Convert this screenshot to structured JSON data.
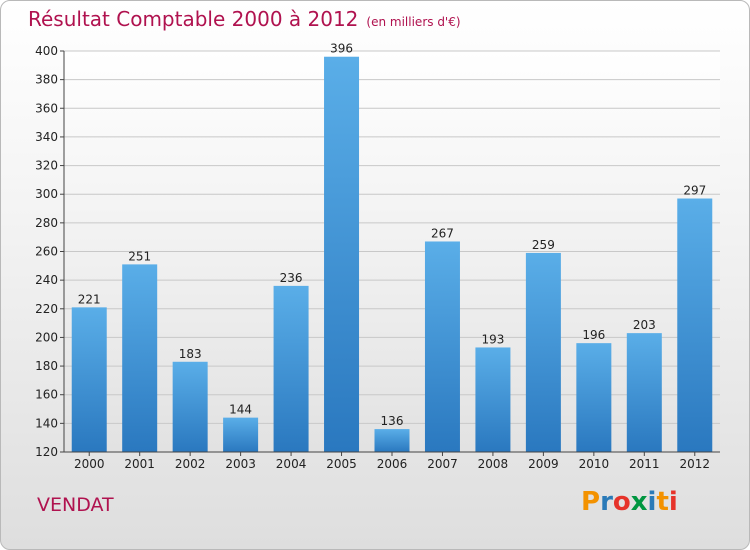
{
  "header": {
    "title": "Résultat Comptable 2000 à 2012",
    "subtitle": "(en milliers d'€)"
  },
  "footer": {
    "commune": "VENDAT",
    "logo": {
      "letters": [
        "P",
        "r",
        "o",
        "x",
        "i",
        "t",
        "i"
      ],
      "colors": [
        "#f39200",
        "#2a7ab8",
        "#e6332a",
        "#009640",
        "#2a7ab8",
        "#f39200",
        "#e6332a"
      ]
    }
  },
  "chart_data": {
    "type": "bar",
    "title": "Résultat Comptable 2000 à 2012",
    "subtitle": "(en milliers d'€)",
    "categories": [
      "2000",
      "2001",
      "2002",
      "2003",
      "2004",
      "2005",
      "2006",
      "2007",
      "2008",
      "2009",
      "2010",
      "2011",
      "2012"
    ],
    "values": [
      221,
      251,
      183,
      144,
      236,
      396,
      136,
      267,
      193,
      259,
      196,
      203,
      297
    ],
    "ylim": [
      120,
      400
    ],
    "yticks": [
      120,
      140,
      160,
      180,
      200,
      220,
      240,
      260,
      280,
      300,
      320,
      340,
      360,
      380,
      400
    ],
    "grid": true,
    "bar_color": "#3a8fd6"
  }
}
